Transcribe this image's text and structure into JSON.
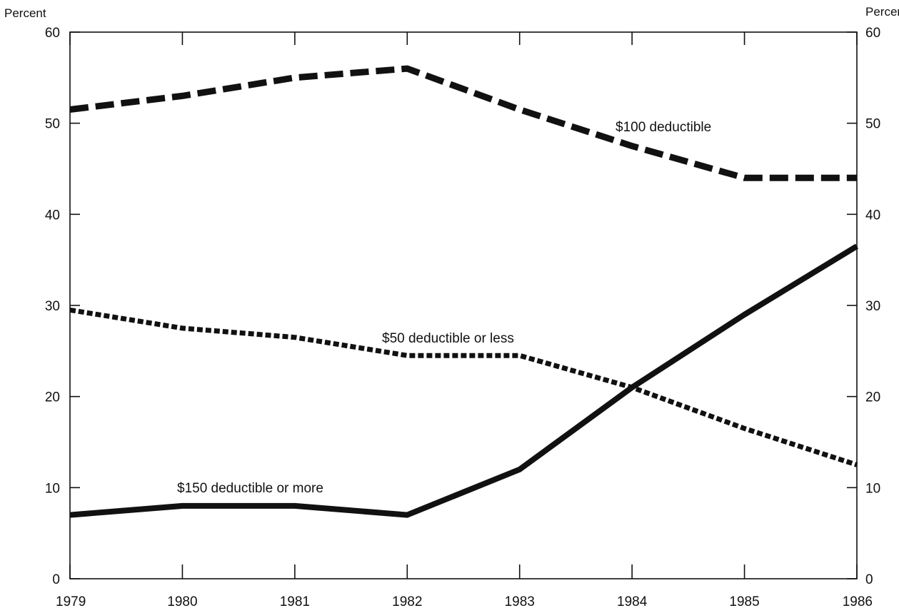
{
  "chart_data": {
    "type": "line",
    "title": "",
    "xlabel": "",
    "ylabel": "Percent",
    "ylabel_right": "Percent",
    "xlim": [
      1979,
      1986
    ],
    "ylim": [
      0,
      60
    ],
    "x": [
      1979,
      1980,
      1981,
      1982,
      1983,
      1984,
      1985,
      1986
    ],
    "x_tick_labels": [
      "1979",
      "1980",
      "1981",
      "1982",
      "1983",
      "1984",
      "1985",
      "1986"
    ],
    "y_ticks": [
      0,
      10,
      20,
      30,
      40,
      50,
      60
    ],
    "y_tick_labels": [
      "0",
      "10",
      "20",
      "30",
      "40",
      "50",
      "60"
    ],
    "grid": false,
    "legend": "none (series labeled directly on chart)",
    "series": [
      {
        "name": "$100 deductible",
        "line_style": "long-dashed",
        "color": "#111111",
        "values": [
          51.5,
          53,
          55,
          56,
          51.5,
          47.5,
          44,
          44
        ]
      },
      {
        "name": "$50 deductible or less",
        "line_style": "short-dashed",
        "color": "#111111",
        "values": [
          29.5,
          27.5,
          26.5,
          24.5,
          24.5,
          21,
          16.5,
          12.5
        ]
      },
      {
        "name": "$150 deductible or more",
        "line_style": "solid",
        "color": "#111111",
        "values": [
          7,
          8,
          8,
          7,
          12,
          21,
          29,
          36.5
        ]
      }
    ]
  }
}
